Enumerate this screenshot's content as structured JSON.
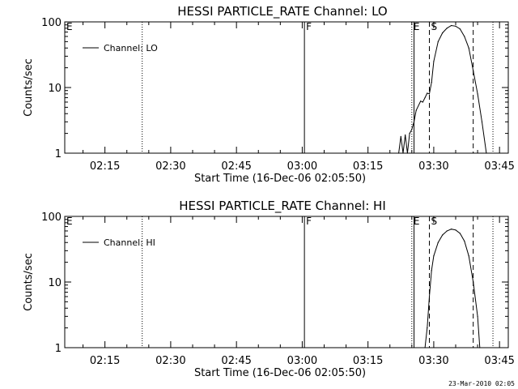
{
  "chart_data": [
    {
      "type": "line",
      "title": "HESSI PARTICLE_RATE Channel: LO",
      "xlabel": "Start Time (16-Dec-06 02:05:50)",
      "ylabel": "Counts/sec",
      "y_scale": "log",
      "ylim": [
        1,
        100
      ],
      "xlim": [
        "02:05:50",
        "03:47:00"
      ],
      "x_ticks": [
        "02:15",
        "02:30",
        "02:45",
        "03:00",
        "03:15",
        "03:30",
        "03:45"
      ],
      "y_ticks": [
        "1",
        "10",
        "100"
      ],
      "grid": false,
      "legend_placement": "top-left",
      "series": [
        {
          "name": "Channel: LO",
          "points": [
            [
              "03:22:00",
              1.0
            ],
            [
              "03:22:30",
              1.8
            ],
            [
              "03:23:00",
              1.0
            ],
            [
              "03:23:30",
              1.9
            ],
            [
              "03:24:00",
              1.0
            ],
            [
              "03:24:30",
              2.0
            ],
            [
              "03:25:00",
              2.3
            ],
            [
              "03:25:30",
              3.0
            ],
            [
              "03:26:00",
              4.5
            ],
            [
              "03:27:00",
              6.2
            ],
            [
              "03:27:30",
              6.0
            ],
            [
              "03:28:00",
              7.0
            ],
            [
              "03:28:30",
              8.2
            ],
            [
              "03:29:00",
              8.0
            ],
            [
              "03:29:30",
              12.0
            ],
            [
              "03:30:00",
              25.0
            ],
            [
              "03:31:00",
              50.0
            ],
            [
              "03:32:00",
              68.0
            ],
            [
              "03:33:00",
              80.0
            ],
            [
              "03:34:00",
              88.0
            ],
            [
              "03:35:00",
              86.0
            ],
            [
              "03:36:00",
              78.0
            ],
            [
              "03:37:00",
              60.0
            ],
            [
              "03:38:00",
              40.0
            ],
            [
              "03:39:00",
              18.0
            ],
            [
              "03:40:00",
              8.0
            ],
            [
              "03:41:00",
              3.0
            ],
            [
              "03:42:00",
              1.0
            ]
          ]
        }
      ],
      "markers": [
        {
          "label": "E",
          "time": "02:05:50",
          "style": "dotted"
        },
        {
          "label": "",
          "time": "02:23:30",
          "style": "dotted"
        },
        {
          "label": "F",
          "time": "03:00:30",
          "style": "solid"
        },
        {
          "label": "E",
          "time": "03:25:00",
          "style": "dotted"
        },
        {
          "label": "",
          "time": "03:25:30",
          "style": "solid"
        },
        {
          "label": "S",
          "time": "03:29:00",
          "style": "dashed"
        },
        {
          "label": "",
          "time": "03:39:00",
          "style": "dashed"
        },
        {
          "label": "",
          "time": "03:43:30",
          "style": "dotted"
        }
      ]
    },
    {
      "type": "line",
      "title": "HESSI PARTICLE_RATE Channel: HI",
      "xlabel": "Start Time (16-Dec-06 02:05:50)",
      "ylabel": "Counts/sec",
      "y_scale": "log",
      "ylim": [
        1,
        100
      ],
      "xlim": [
        "02:05:50",
        "03:47:00"
      ],
      "x_ticks": [
        "02:15",
        "02:30",
        "02:45",
        "03:00",
        "03:15",
        "03:30",
        "03:45"
      ],
      "y_ticks": [
        "1",
        "10",
        "100"
      ],
      "grid": false,
      "legend_placement": "top-left",
      "series": [
        {
          "name": "Channel: HI",
          "points": [
            [
              "03:28:00",
              1.0
            ],
            [
              "03:28:30",
              2.0
            ],
            [
              "03:29:00",
              6.0
            ],
            [
              "03:29:30",
              15.0
            ],
            [
              "03:30:00",
              25.0
            ],
            [
              "03:31:00",
              40.0
            ],
            [
              "03:32:00",
              52.0
            ],
            [
              "03:33:00",
              60.0
            ],
            [
              "03:34:00",
              64.0
            ],
            [
              "03:35:00",
              62.0
            ],
            [
              "03:36:00",
              55.0
            ],
            [
              "03:37:00",
              42.0
            ],
            [
              "03:38:00",
              25.0
            ],
            [
              "03:39:00",
              10.0
            ],
            [
              "03:40:00",
              3.0
            ],
            [
              "03:40:30",
              1.0
            ]
          ]
        }
      ],
      "markers": [
        {
          "label": "E",
          "time": "02:05:50",
          "style": "dotted"
        },
        {
          "label": "",
          "time": "02:23:30",
          "style": "dotted"
        },
        {
          "label": "F",
          "time": "03:00:30",
          "style": "solid"
        },
        {
          "label": "E",
          "time": "03:25:00",
          "style": "dotted"
        },
        {
          "label": "",
          "time": "03:25:30",
          "style": "solid"
        },
        {
          "label": "S",
          "time": "03:29:00",
          "style": "dashed"
        },
        {
          "label": "",
          "time": "03:39:00",
          "style": "dashed"
        },
        {
          "label": "",
          "time": "03:43:30",
          "style": "dotted"
        }
      ]
    }
  ],
  "footer": {
    "timestamp": "23-Mar-2010 02:05"
  }
}
